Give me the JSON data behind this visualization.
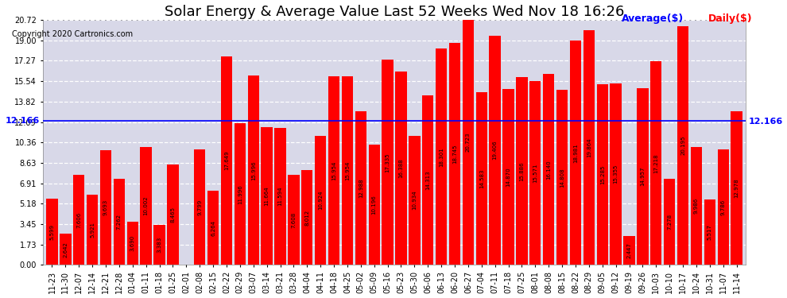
{
  "title": "Solar Energy & Average Value Last 52 Weeks Wed Nov 18 16:26",
  "copyright": "Copyright 2020 Cartronics.com",
  "average_label": "Average($)",
  "daily_label": "Daily($)",
  "average_value": 12.166,
  "categories": [
    "11-23",
    "11-30",
    "12-07",
    "12-14",
    "12-21",
    "12-28",
    "01-04",
    "01-11",
    "01-18",
    "01-25",
    "02-01",
    "02-08",
    "02-15",
    "02-22",
    "02-29",
    "03-07",
    "03-14",
    "03-21",
    "03-28",
    "04-04",
    "04-11",
    "04-18",
    "04-25",
    "05-02",
    "05-09",
    "05-16",
    "05-23",
    "05-30",
    "06-06",
    "06-13",
    "06-20",
    "06-27",
    "07-04",
    "07-11",
    "07-18",
    "07-25",
    "08-01",
    "08-08",
    "08-15",
    "08-22",
    "08-29",
    "09-05",
    "09-12",
    "09-19",
    "09-26",
    "10-03",
    "10-10",
    "10-17",
    "10-24",
    "10-31",
    "11-07",
    "11-14"
  ],
  "values": [
    5.599,
    2.642,
    7.606,
    5.921,
    9.693,
    7.262,
    3.69,
    10.002,
    3.383,
    8.465,
    0.008,
    9.799,
    6.264,
    17.649,
    11.996,
    15.996,
    11.664,
    11.594,
    7.608,
    8.012,
    10.924,
    15.954,
    15.954,
    12.988,
    10.196,
    17.335,
    16.388,
    10.934,
    14.313,
    18.301,
    18.745,
    20.723,
    14.583,
    19.406,
    14.87,
    15.886,
    15.571,
    16.14,
    14.808,
    18.981,
    19.864,
    15.285,
    15.355,
    2.447,
    14.957,
    17.218,
    7.278,
    20.195,
    9.986,
    5.517,
    9.786,
    12.978
  ],
  "bar_color": "#ff0000",
  "background_color": "#ffffff",
  "plot_bg_color": "#d8d8e8",
  "grid_color": "#ffffff",
  "average_line_color": "#0000ff",
  "ylim_max": 20.72,
  "yticks": [
    0.0,
    1.73,
    3.45,
    5.18,
    6.91,
    8.63,
    10.36,
    12.09,
    13.82,
    15.54,
    17.27,
    19.0,
    20.72
  ],
  "title_fontsize": 13,
  "copyright_fontsize": 7,
  "tick_fontsize": 7,
  "bar_value_fontsize": 5,
  "legend_fontsize": 9
}
